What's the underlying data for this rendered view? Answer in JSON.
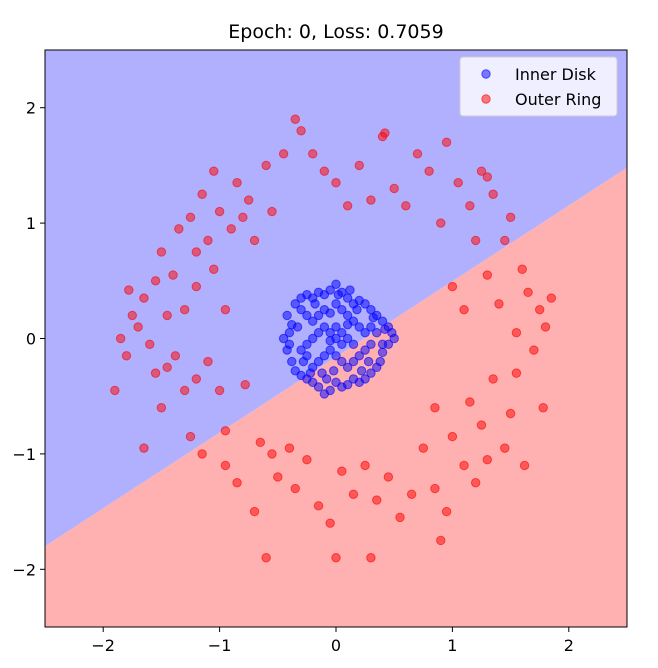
{
  "chart_data": {
    "type": "scatter",
    "title": "Epoch: 0, Loss: 0.7059",
    "xlabel": "",
    "ylabel": "",
    "xlim": [
      -2.5,
      2.5
    ],
    "ylim": [
      -2.5,
      2.5
    ],
    "x_ticks": [
      -2,
      -1,
      0,
      1,
      2
    ],
    "y_ticks": [
      -2,
      -1,
      0,
      1,
      2
    ],
    "x_tick_labels": [
      "−2",
      "−1",
      "0",
      "1",
      "2"
    ],
    "y_tick_labels": [
      "−2",
      "−1",
      "0",
      "1",
      "2"
    ],
    "grid": false,
    "legend_position": "top-right",
    "decision_boundary": {
      "description_points": [
        [
          -2.5,
          -1.8
        ],
        [
          2.5,
          1.48
        ]
      ],
      "above_region_color": "#b0b0ff",
      "below_region_color": "#ffb0b0"
    },
    "series": [
      {
        "name": "Inner Disk",
        "color": "#0000ff",
        "points": [
          [
            -0.35,
            0.3
          ],
          [
            -0.3,
            0.35
          ],
          [
            -0.25,
            0.38
          ],
          [
            -0.2,
            0.35
          ],
          [
            -0.15,
            0.4
          ],
          [
            -0.1,
            0.38
          ],
          [
            -0.05,
            0.42
          ],
          [
            0.0,
            0.47
          ],
          [
            0.05,
            0.4
          ],
          [
            0.1,
            0.35
          ],
          [
            0.15,
            0.3
          ],
          [
            0.2,
            0.33
          ],
          [
            0.25,
            0.3
          ],
          [
            0.3,
            0.25
          ],
          [
            0.35,
            0.2
          ],
          [
            0.4,
            0.15
          ],
          [
            0.45,
            0.1
          ],
          [
            0.48,
            0.05
          ],
          [
            0.5,
            0.0
          ],
          [
            0.45,
            -0.05
          ],
          [
            0.4,
            -0.12
          ],
          [
            0.38,
            -0.2
          ],
          [
            0.35,
            -0.25
          ],
          [
            0.3,
            -0.3
          ],
          [
            0.25,
            -0.35
          ],
          [
            0.2,
            -0.38
          ],
          [
            0.15,
            -0.35
          ],
          [
            0.1,
            -0.4
          ],
          [
            0.05,
            -0.42
          ],
          [
            0.0,
            -0.38
          ],
          [
            -0.05,
            -0.45
          ],
          [
            -0.1,
            -0.48
          ],
          [
            -0.15,
            -0.42
          ],
          [
            -0.2,
            -0.38
          ],
          [
            -0.25,
            -0.35
          ],
          [
            -0.3,
            -0.32
          ],
          [
            -0.35,
            -0.28
          ],
          [
            -0.38,
            -0.2
          ],
          [
            -0.42,
            -0.1
          ],
          [
            -0.45,
            0.0
          ],
          [
            -0.4,
            0.05
          ],
          [
            -0.38,
            0.12
          ],
          [
            -0.42,
            0.2
          ],
          [
            -0.3,
            0.25
          ],
          [
            -0.25,
            0.2
          ],
          [
            -0.2,
            0.15
          ],
          [
            -0.15,
            0.2
          ],
          [
            -0.1,
            0.25
          ],
          [
            -0.05,
            0.22
          ],
          [
            0.0,
            0.3
          ],
          [
            0.05,
            0.25
          ],
          [
            0.1,
            0.2
          ],
          [
            0.15,
            0.15
          ],
          [
            0.2,
            0.1
          ],
          [
            0.25,
            0.05
          ],
          [
            0.3,
            0.1
          ],
          [
            0.35,
            0.05
          ],
          [
            0.3,
            -0.05
          ],
          [
            0.25,
            -0.1
          ],
          [
            0.2,
            -0.15
          ],
          [
            0.15,
            -0.2
          ],
          [
            0.1,
            -0.25
          ],
          [
            0.05,
            -0.2
          ],
          [
            0.0,
            -0.15
          ],
          [
            -0.05,
            -0.1
          ],
          [
            -0.1,
            -0.15
          ],
          [
            -0.15,
            -0.2
          ],
          [
            -0.2,
            -0.25
          ],
          [
            -0.25,
            -0.15
          ],
          [
            -0.3,
            -0.1
          ],
          [
            -0.25,
            -0.05
          ],
          [
            -0.2,
            0.0
          ],
          [
            -0.15,
            0.05
          ],
          [
            -0.1,
            0.1
          ],
          [
            -0.05,
            0.05
          ],
          [
            0.0,
            0.0
          ],
          [
            0.05,
            0.05
          ],
          [
            0.1,
            0.0
          ],
          [
            0.15,
            -0.05
          ],
          [
            0.05,
            -0.05
          ],
          [
            -0.05,
            -0.02
          ],
          [
            0.0,
            0.1
          ],
          [
            0.1,
            0.12
          ],
          [
            -0.12,
            -0.3
          ],
          [
            0.22,
            -0.28
          ],
          [
            -0.33,
            0.1
          ],
          [
            0.32,
            0.18
          ],
          [
            -0.18,
            0.3
          ],
          [
            0.12,
            0.42
          ],
          [
            -0.08,
            -0.35
          ],
          [
            0.28,
            -0.2
          ],
          [
            -0.28,
            -0.2
          ],
          [
            0.4,
            -0.05
          ],
          [
            -0.4,
            -0.05
          ],
          [
            0.02,
            0.38
          ],
          [
            -0.02,
            -0.28
          ],
          [
            0.18,
            0.25
          ],
          [
            -0.22,
            -0.3
          ],
          [
            0.42,
            0.08
          ]
        ]
      },
      {
        "name": "Outer Ring",
        "color": "#ff0000",
        "points": [
          [
            -1.9,
            -0.45
          ],
          [
            -1.8,
            -0.15
          ],
          [
            -1.75,
            0.2
          ],
          [
            -1.78,
            0.42
          ],
          [
            -1.7,
            0.1
          ],
          [
            -1.65,
            0.35
          ],
          [
            -1.6,
            -0.05
          ],
          [
            -1.55,
            -0.3
          ],
          [
            -1.55,
            0.5
          ],
          [
            -1.5,
            -0.6
          ],
          [
            -1.45,
            0.2
          ],
          [
            -1.45,
            -0.25
          ],
          [
            -1.65,
            -0.95
          ],
          [
            -1.5,
            0.75
          ],
          [
            -1.4,
            0.55
          ],
          [
            -1.38,
            -0.15
          ],
          [
            -1.35,
            0.95
          ],
          [
            -1.3,
            -0.45
          ],
          [
            -1.3,
            0.25
          ],
          [
            -1.25,
            -0.85
          ],
          [
            -1.25,
            1.05
          ],
          [
            -1.2,
            0.75
          ],
          [
            -1.2,
            -0.35
          ],
          [
            -1.2,
            0.45
          ],
          [
            -1.15,
            1.25
          ],
          [
            -1.15,
            -1.0
          ],
          [
            -1.1,
            0.85
          ],
          [
            -1.1,
            -0.2
          ],
          [
            -1.05,
            1.45
          ],
          [
            -1.05,
            0.6
          ],
          [
            -1.0,
            -0.45
          ],
          [
            -1.0,
            1.1
          ],
          [
            -0.95,
            0.25
          ],
          [
            -0.95,
            -1.1
          ],
          [
            -0.9,
            0.95
          ],
          [
            -0.85,
            1.35
          ],
          [
            -0.85,
            -1.25
          ],
          [
            -0.8,
            1.05
          ],
          [
            -0.78,
            -0.4
          ],
          [
            -0.75,
            1.2
          ],
          [
            -0.7,
            -1.5
          ],
          [
            -0.7,
            0.85
          ],
          [
            -0.65,
            -0.9
          ],
          [
            -0.6,
            1.5
          ],
          [
            -0.55,
            -1.0
          ],
          [
            -0.55,
            1.1
          ],
          [
            -0.5,
            -1.2
          ],
          [
            -0.45,
            1.6
          ],
          [
            -0.4,
            -0.95
          ],
          [
            -0.35,
            -1.3
          ],
          [
            -0.3,
            1.8
          ],
          [
            -0.25,
            -1.05
          ],
          [
            -0.2,
            1.6
          ],
          [
            -0.15,
            -1.45
          ],
          [
            -0.1,
            1.45
          ],
          [
            -0.05,
            -1.6
          ],
          [
            0.0,
            1.35
          ],
          [
            0.0,
            -1.9
          ],
          [
            0.05,
            -1.15
          ],
          [
            0.1,
            1.15
          ],
          [
            0.15,
            -1.35
          ],
          [
            0.2,
            1.5
          ],
          [
            0.25,
            -1.1
          ],
          [
            0.3,
            1.2
          ],
          [
            0.35,
            -1.4
          ],
          [
            0.4,
            1.75
          ],
          [
            0.45,
            -1.2
          ],
          [
            0.5,
            1.3
          ],
          [
            0.55,
            -1.55
          ],
          [
            0.6,
            1.15
          ],
          [
            0.65,
            -1.35
          ],
          [
            0.7,
            1.6
          ],
          [
            0.75,
            -0.95
          ],
          [
            0.8,
            1.45
          ],
          [
            0.85,
            -1.3
          ],
          [
            0.85,
            -0.6
          ],
          [
            0.9,
            1.0
          ],
          [
            0.95,
            -1.5
          ],
          [
            0.95,
            1.7
          ],
          [
            1.0,
            -0.85
          ],
          [
            1.0,
            0.45
          ],
          [
            1.05,
            1.35
          ],
          [
            1.1,
            -1.1
          ],
          [
            1.1,
            0.25
          ],
          [
            1.15,
            1.15
          ],
          [
            1.15,
            -0.55
          ],
          [
            1.2,
            -1.25
          ],
          [
            1.2,
            0.85
          ],
          [
            1.25,
            1.45
          ],
          [
            1.25,
            -0.75
          ],
          [
            1.3,
            0.55
          ],
          [
            1.3,
            -1.05
          ],
          [
            1.35,
            -0.35
          ],
          [
            1.35,
            1.25
          ],
          [
            1.4,
            0.3
          ],
          [
            1.45,
            -0.95
          ],
          [
            1.45,
            0.85
          ],
          [
            1.5,
            -0.65
          ],
          [
            1.5,
            1.05
          ],
          [
            1.55,
            0.05
          ],
          [
            1.55,
            -0.3
          ],
          [
            1.6,
            0.6
          ],
          [
            1.62,
            -1.1
          ],
          [
            1.65,
            0.4
          ],
          [
            1.7,
            -0.1
          ],
          [
            1.75,
            0.25
          ],
          [
            1.78,
            -0.6
          ],
          [
            1.8,
            0.1
          ],
          [
            1.85,
            0.35
          ],
          [
            -1.85,
            0.0
          ],
          [
            -0.95,
            -0.8
          ],
          [
            0.3,
            -1.9
          ],
          [
            -0.6,
            -1.9
          ],
          [
            0.9,
            -1.75
          ],
          [
            1.3,
            1.4
          ],
          [
            -0.35,
            1.9
          ],
          [
            0.42,
            1.78
          ]
        ]
      }
    ]
  }
}
